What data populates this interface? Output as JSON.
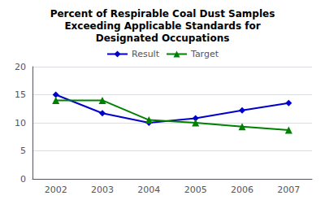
{
  "chart_data": {
    "type": "line",
    "title": "Percent of Respirable Coal Dust Samples\nExceeding Applicable Standards for\nDesignated Occupations",
    "categories": [
      "2002",
      "2003",
      "2004",
      "2005",
      "2006",
      "2007"
    ],
    "series": [
      {
        "name": "Result",
        "color": "#0000CC",
        "marker": "diamond",
        "values": [
          15.0,
          11.7,
          10.0,
          10.8,
          12.2,
          13.5
        ]
      },
      {
        "name": "Target",
        "color": "#008000",
        "marker": "triangle",
        "values": [
          14.0,
          14.0,
          10.5,
          10.0,
          9.3,
          8.7
        ]
      }
    ],
    "ylim": [
      0,
      20
    ],
    "yticks": [
      0,
      5,
      10,
      15,
      20
    ],
    "grid": true,
    "legend": "top"
  }
}
